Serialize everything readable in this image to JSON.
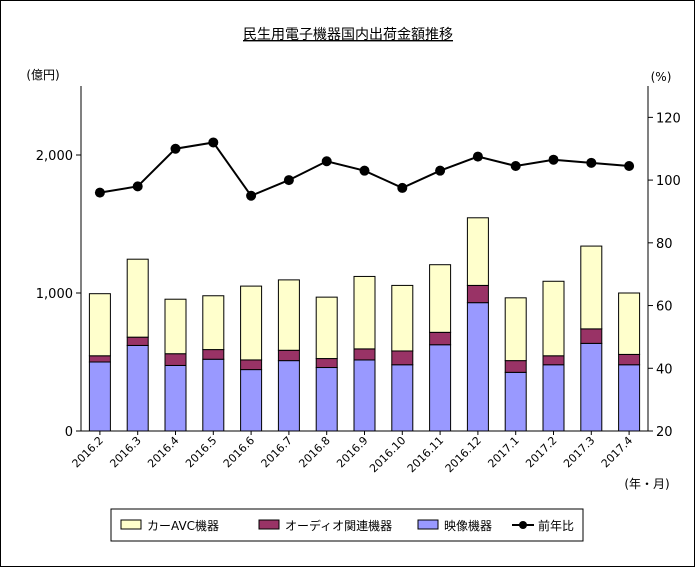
{
  "chart_data": {
    "type": "bar",
    "title": "民生用電子機器国内出荷金額推移",
    "y_left_unit": "(億円)",
    "y_right_unit": "(%)",
    "x_unit": "(年・月)",
    "y_left_range": [
      0,
      2500
    ],
    "y_left_ticks": [
      "0",
      "1,000",
      "2,000"
    ],
    "y_left_tick_values": [
      0,
      1000,
      2000
    ],
    "y_right_range": [
      20,
      130
    ],
    "y_right_ticks": [
      "20",
      "40",
      "60",
      "80",
      "100",
      "120"
    ],
    "y_right_tick_values": [
      20,
      40,
      60,
      80,
      100,
      120
    ],
    "grid": false,
    "legend_position": "bottom",
    "categories": [
      "2016.2",
      "2016.3",
      "2016.4",
      "2016.5",
      "2016.6",
      "2016.7",
      "2016.8",
      "2016.9",
      "2016.10",
      "2016.11",
      "2016.12",
      "2017.1",
      "2017.2",
      "2017.3",
      "2017.4"
    ],
    "series": [
      {
        "name": "映像機器",
        "kind": "stacked-bar",
        "color": "#9999ff",
        "values": [
          500,
          620,
          475,
          520,
          445,
          510,
          460,
          515,
          480,
          625,
          930,
          425,
          480,
          635,
          480
        ]
      },
      {
        "name": "オーディオ関連機器",
        "kind": "stacked-bar",
        "color": "#993366",
        "values": [
          45,
          60,
          85,
          70,
          70,
          75,
          65,
          80,
          100,
          90,
          125,
          85,
          65,
          105,
          75
        ]
      },
      {
        "name": "カーAVC機器",
        "kind": "stacked-bar",
        "color": "#ffffcc",
        "values": [
          450,
          565,
          395,
          390,
          535,
          510,
          445,
          525,
          475,
          490,
          490,
          455,
          540,
          600,
          445
        ]
      },
      {
        "name": "前年比",
        "kind": "line",
        "axis": "right",
        "color": "#000000",
        "values": [
          96,
          98,
          110,
          112,
          95,
          100,
          106,
          103,
          97.5,
          103,
          107.5,
          104.5,
          106.5,
          105.5,
          104.5
        ]
      }
    ]
  }
}
